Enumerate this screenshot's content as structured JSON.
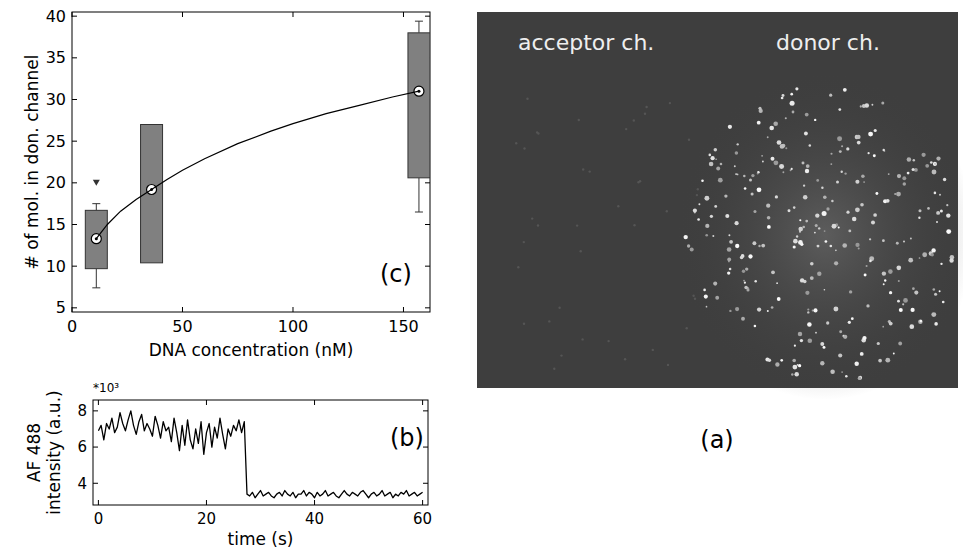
{
  "chart_data": [
    {
      "type": "box",
      "xlabel": "DNA concentration (nM)",
      "ylabel": "# of mol. in don. channel",
      "xlim": [
        0,
        162
      ],
      "ylim": [
        4.5,
        40.5
      ],
      "xticks": [
        0,
        50,
        100,
        150
      ],
      "yticks": [
        5,
        10,
        15,
        20,
        25,
        30,
        35,
        40
      ],
      "series": [
        {
          "type": "box",
          "color": "#808080",
          "x": [
            11,
            36,
            157
          ],
          "q1": [
            9.7,
            10.4,
            20.6
          ],
          "median": [
            13.3,
            19.2,
            31
          ],
          "q3": [
            16.7,
            27,
            38
          ],
          "whisker_low": [
            7.4,
            null,
            16.5
          ],
          "whisker_high": [
            17.5,
            null,
            39.4
          ],
          "outliers": [
            [
              20
            ],
            [],
            []
          ]
        },
        {
          "type": "line",
          "color": "#000000",
          "x": [
            11,
            16,
            22,
            29,
            36,
            43,
            50,
            60,
            75,
            90,
            100,
            115,
            130,
            145,
            157
          ],
          "values": [
            13.3,
            15.0,
            16.6,
            18.0,
            19.2,
            20.4,
            21.5,
            22.9,
            24.7,
            26.2,
            27.1,
            28.3,
            29.3,
            30.3,
            31.0
          ]
        }
      ],
      "annotations": [
        "(c)"
      ]
    },
    {
      "type": "line",
      "xlabel": "time (s)",
      "ylabel": "AF 488 intensity (a.u.)",
      "xlim": [
        -1,
        61
      ],
      "ylim": [
        2.8,
        8.6
      ],
      "xticks": [
        0,
        20,
        40,
        60
      ],
      "yticks": [
        4,
        6,
        8
      ],
      "x": [
        0,
        0.5,
        1,
        1.5,
        2,
        2.5,
        3,
        3.5,
        4,
        4.5,
        5,
        5.5,
        6,
        6.5,
        7,
        7.5,
        8,
        8.5,
        9,
        9.5,
        10,
        10.5,
        11,
        11.5,
        12,
        12.5,
        13,
        13.5,
        14,
        14.5,
        15,
        15.5,
        16,
        16.5,
        17,
        17.5,
        18,
        18.5,
        19,
        19.5,
        20,
        20.5,
        21,
        21.5,
        22,
        22.5,
        23,
        23.5,
        24,
        24.5,
        25,
        25.5,
        26,
        26.5,
        27,
        27.5,
        28,
        28.5,
        29,
        29.5,
        30,
        30.5,
        31,
        31.5,
        32,
        32.5,
        33,
        33.5,
        34,
        34.5,
        35,
        35.5,
        36,
        36.5,
        37,
        37.5,
        38,
        38.5,
        39,
        39.5,
        40,
        40.5,
        41,
        41.5,
        42,
        42.5,
        43,
        43.5,
        44,
        44.5,
        45,
        45.5,
        46,
        46.5,
        47,
        47.5,
        48,
        48.5,
        49,
        49.5,
        50,
        50.5,
        51,
        51.5,
        52,
        52.5,
        53,
        53.5,
        54,
        54.5,
        55,
        55.5,
        56,
        56.5,
        57,
        57.5,
        58,
        58.5,
        59,
        59.5,
        60
      ],
      "series": [
        {
          "color": "#000000",
          "values": [
            6.9,
            7.2,
            6.4,
            7.3,
            7.0,
            7.6,
            6.8,
            7.1,
            7.9,
            7.3,
            6.9,
            7.5,
            8.0,
            7.2,
            6.7,
            7.4,
            7.8,
            6.9,
            7.3,
            7.0,
            6.6,
            7.7,
            7.2,
            6.5,
            7.4,
            6.9,
            7.1,
            6.3,
            7.6,
            6.8,
            5.8,
            7.2,
            6.1,
            7.5,
            6.4,
            5.9,
            7.0,
            6.2,
            7.4,
            5.6,
            6.8,
            7.3,
            6.0,
            7.1,
            6.5,
            7.6,
            6.7,
            5.9,
            7.0,
            6.6,
            7.2,
            6.9,
            7.5,
            6.8,
            7.4,
            3.4,
            3.3,
            3.5,
            3.2,
            3.4,
            3.6,
            3.3,
            3.4,
            3.5,
            3.3,
            3.2,
            3.4,
            3.5,
            3.3,
            3.6,
            3.4,
            3.3,
            3.5,
            3.2,
            3.4,
            3.4,
            3.6,
            3.3,
            3.5,
            3.4,
            3.2,
            3.5,
            3.3,
            3.4,
            3.6,
            3.3,
            3.4,
            3.5,
            3.3,
            3.2,
            3.4,
            3.6,
            3.4,
            3.3,
            3.5,
            3.4,
            3.3,
            3.5,
            3.6,
            3.4,
            3.2,
            3.4,
            3.5,
            3.3,
            3.4,
            3.6,
            3.3,
            3.4,
            3.5,
            3.2,
            3.4,
            3.3,
            3.5,
            3.4,
            3.6,
            3.3,
            3.4,
            3.5,
            3.3,
            3.4,
            3.5
          ]
        }
      ],
      "annotations": [
        "*10³",
        "(b)"
      ]
    }
  ],
  "image": {
    "labels": [
      "acceptor ch.",
      "donor ch."
    ],
    "caption": "(a)"
  }
}
